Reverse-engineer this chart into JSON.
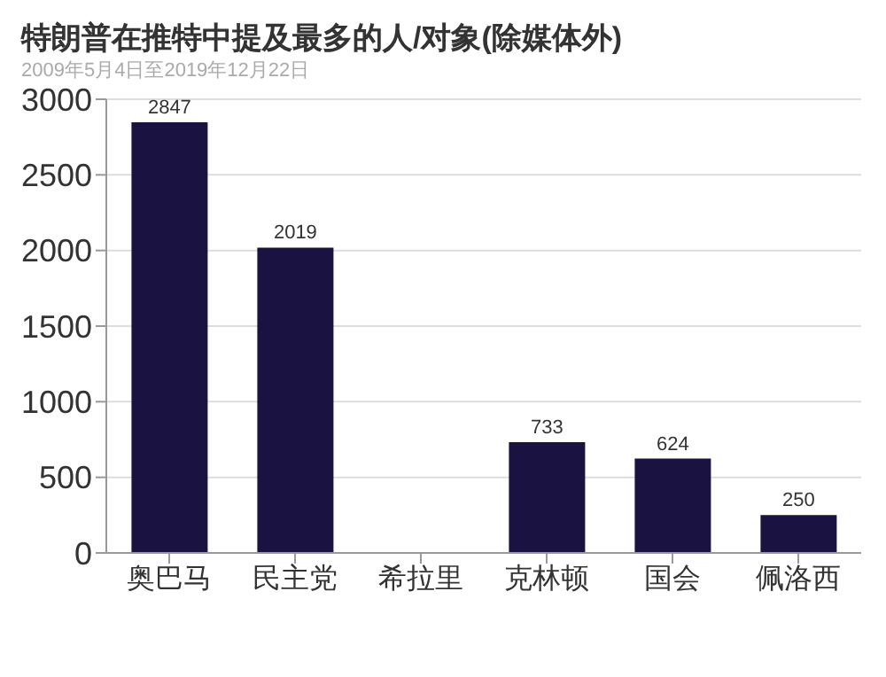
{
  "chart_data": {
    "type": "bar",
    "title": "特朗普在推特中提及最多的人/对象(除媒体外)",
    "subtitle": "2009年5月4日至2019年12月22日",
    "categories": [
      "奥巴马",
      "民主党",
      "希拉里",
      "克林顿",
      "国会",
      "佩洛西"
    ],
    "values": [
      2847,
      2019,
      null,
      733,
      624,
      250
    ],
    "value_labels": [
      "2847",
      "2019",
      null,
      "733",
      "624",
      "250"
    ],
    "color": "#1a1240",
    "ylim": [
      0,
      3000
    ],
    "yticks": [
      0,
      500,
      1000,
      1500,
      2000,
      2500,
      3000
    ],
    "grid": "y"
  }
}
